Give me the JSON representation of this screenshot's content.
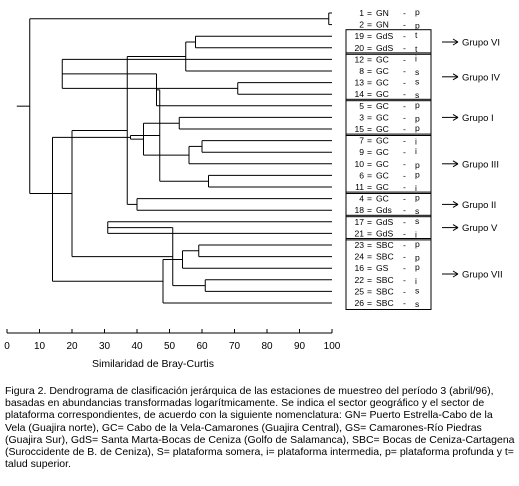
{
  "axis": {
    "title": "Similaridad de Bray-Curtis",
    "ticks": [
      0,
      10,
      20,
      30,
      40,
      50,
      60,
      70,
      80,
      90,
      100
    ]
  },
  "leaves": [
    {
      "id": "1",
      "sector": "GN",
      "zone": "p"
    },
    {
      "id": "2",
      "sector": "GN",
      "zone": "p"
    },
    {
      "id": "19",
      "sector": "GdS",
      "zone": "t"
    },
    {
      "id": "20",
      "sector": "GdS",
      "zone": "t"
    },
    {
      "id": "12",
      "sector": "GC",
      "zone": "i"
    },
    {
      "id": "8",
      "sector": "GC",
      "zone": "s"
    },
    {
      "id": "13",
      "sector": "GC",
      "zone": "s"
    },
    {
      "id": "14",
      "sector": "GC",
      "zone": "s"
    },
    {
      "id": "5",
      "sector": "GC",
      "zone": "p"
    },
    {
      "id": "3",
      "sector": "GC",
      "zone": "p"
    },
    {
      "id": "15",
      "sector": "GC",
      "zone": "p"
    },
    {
      "id": "7",
      "sector": "GC",
      "zone": "i"
    },
    {
      "id": "9",
      "sector": "GC",
      "zone": "i"
    },
    {
      "id": "10",
      "sector": "GC",
      "zone": "p"
    },
    {
      "id": "6",
      "sector": "GC",
      "zone": "p"
    },
    {
      "id": "11",
      "sector": "GC",
      "zone": "i"
    },
    {
      "id": "4",
      "sector": "GC",
      "zone": "p"
    },
    {
      "id": "18",
      "sector": "Gds",
      "zone": "s"
    },
    {
      "id": "17",
      "sector": "GdS",
      "zone": "s"
    },
    {
      "id": "21",
      "sector": "GdS",
      "zone": "i"
    },
    {
      "id": "23",
      "sector": "SBC",
      "zone": "p"
    },
    {
      "id": "24",
      "sector": "SBC",
      "zone": "p"
    },
    {
      "id": "16",
      "sector": "GS",
      "zone": "p"
    },
    {
      "id": "22",
      "sector": "SBC",
      "zone": "i"
    },
    {
      "id": "25",
      "sector": "SBC",
      "zone": "s"
    },
    {
      "id": "26",
      "sector": "SBC",
      "zone": "s"
    }
  ],
  "merges": [
    {
      "a": 0,
      "b": 1,
      "sim": 99
    },
    {
      "a": 2,
      "b": 3,
      "sim": 58
    },
    {
      "a": 6,
      "b": 7,
      "sim": 71
    },
    {
      "a": 5,
      "b": 27,
      "sim": 55
    },
    {
      "a": 4,
      "b": 28,
      "sim": 17
    },
    {
      "a": 9,
      "b": 10,
      "sim": 53
    },
    {
      "a": 8,
      "b": 30,
      "sim": 46
    },
    {
      "a": 11,
      "b": 12,
      "sim": 60
    },
    {
      "a": 14,
      "b": 15,
      "sim": 62
    },
    {
      "a": 13,
      "b": 33,
      "sim": 56
    },
    {
      "a": 32,
      "b": 34,
      "sim": 47
    },
    {
      "a": 31,
      "b": 35,
      "sim": 42
    },
    {
      "a": 16,
      "b": 17,
      "sim": 40
    },
    {
      "a": 36,
      "b": 37,
      "sim": 38
    },
    {
      "a": 29,
      "b": 38,
      "sim": 37
    },
    {
      "a": 18,
      "b": 19,
      "sim": 31
    },
    {
      "a": 20,
      "b": 21,
      "sim": 59
    },
    {
      "a": 23,
      "b": 24,
      "sim": 61
    },
    {
      "a": 22,
      "b": 42,
      "sim": 54
    },
    {
      "a": 41,
      "b": 43,
      "sim": 51
    },
    {
      "a": 44,
      "b": 25,
      "sim": 48
    },
    {
      "a": 40,
      "b": 45,
      "sim": 20
    },
    {
      "a": 39,
      "b": 46,
      "sim": 14
    },
    {
      "a": 26,
      "b": 47,
      "sim": 7
    }
  ],
  "groups": [
    {
      "label": "Grupo VI",
      "first": 2,
      "last": 3
    },
    {
      "label": "Grupo IV",
      "first": 4,
      "last": 7
    },
    {
      "label": "Grupo  I",
      "first": 8,
      "last": 10
    },
    {
      "label": "Grupo III",
      "first": 11,
      "last": 15
    },
    {
      "label": "Grupo II",
      "first": 16,
      "last": 17
    },
    {
      "label": "Grupo V",
      "first": 18,
      "last": 19
    },
    {
      "label": "Grupo VII",
      "first": 20,
      "last": 25
    }
  ],
  "caption": "Figura 2.  Dendrograma de clasificación jerárquica de las estaciones de muestreo del período 3 (abril/96), basadas en abundancias transformadas logarítmicamente.  Se indica el sector geográfico y el sector de plataforma correspondientes, de acuerdo con la siguiente nomenclatura: GN= Puerto Estrella-Cabo de la Vela (Guajira norte), GC= Cabo de la Vela-Camarones (Guajira Central), GS= Camarones-Río Piedras (Guajira Sur), GdS= Santa Marta-Bocas de Ceniza (Golfo de Salamanca), SBC= Bocas de Ceniza-Cartagena (Suroccidente de B. de Ceniza), S= plataforma somera, i= plataforma intermedia, p= plataforma profunda y t= talud superior."
}
